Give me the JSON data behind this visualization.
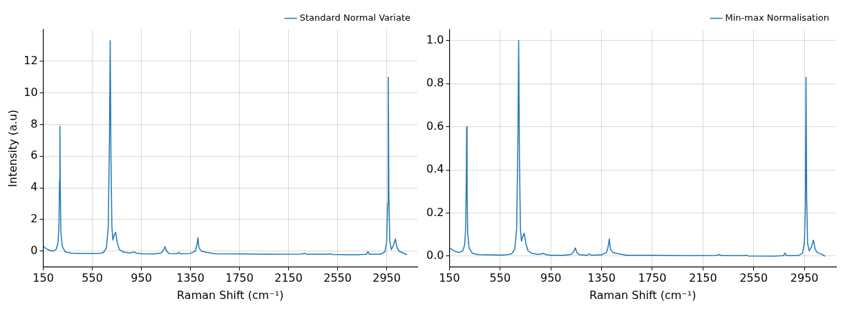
{
  "chart_data": [
    {
      "type": "line",
      "xlabel": "Raman Shift (cm⁻¹)",
      "ylabel": "Intensity (a.u)",
      "x": [
        150,
        170,
        200,
        230,
        255,
        270,
        278,
        283,
        286,
        289,
        294,
        305,
        330,
        380,
        450,
        550,
        600,
        640,
        665,
        680,
        690,
        696,
        702,
        710,
        718,
        728,
        740,
        752,
        770,
        800,
        850,
        880,
        892,
        905,
        950,
        1050,
        1110,
        1130,
        1143,
        1155,
        1175,
        1240,
        1253,
        1268,
        1350,
        1390,
        1403,
        1411,
        1420,
        1440,
        1480,
        1550,
        1750,
        2000,
        2250,
        2279,
        2300,
        2480,
        2492,
        2505,
        2700,
        2785,
        2797,
        2808,
        2900,
        2935,
        2950,
        2958,
        2963,
        2968,
        2975,
        2988,
        3005,
        3021,
        3035,
        3050,
        3080,
        3114
      ],
      "series": [
        {
          "name": "Standard Normal Variate",
          "color": "#1f77b4",
          "values": [
            0.3,
            0.18,
            0.05,
            0.0,
            0.1,
            0.5,
            1.5,
            4.5,
            7.9,
            4.0,
            1.2,
            0.3,
            -0.05,
            -0.13,
            -0.15,
            -0.16,
            -0.15,
            -0.1,
            0.2,
            1.5,
            7.0,
            13.3,
            6.0,
            1.5,
            0.7,
            1.0,
            1.2,
            0.6,
            0.1,
            -0.05,
            -0.12,
            -0.08,
            -0.05,
            -0.12,
            -0.17,
            -0.18,
            -0.12,
            0.05,
            0.28,
            0.0,
            -0.15,
            -0.17,
            -0.08,
            -0.17,
            -0.15,
            0.0,
            0.4,
            0.85,
            0.2,
            0.0,
            -0.08,
            -0.17,
            -0.18,
            -0.2,
            -0.19,
            -0.14,
            -0.2,
            -0.2,
            -0.16,
            -0.21,
            -0.23,
            -0.2,
            -0.03,
            -0.2,
            -0.2,
            -0.05,
            0.6,
            3.0,
            11.0,
            3.5,
            0.6,
            0.1,
            0.35,
            0.77,
            0.2,
            0.0,
            -0.1,
            -0.23
          ]
        }
      ],
      "xlim": [
        150,
        3200
      ],
      "ylim": [
        -1,
        14
      ],
      "xticks": [
        150,
        550,
        950,
        1350,
        1750,
        2150,
        2550,
        2950
      ],
      "yticks": [
        0,
        2,
        4,
        6,
        8,
        10,
        12
      ],
      "grid": true,
      "legend": "top right"
    },
    {
      "type": "line",
      "xlabel": "Raman Shift (cm⁻¹)",
      "x": [
        150,
        170,
        200,
        230,
        255,
        270,
        278,
        283,
        286,
        289,
        294,
        305,
        330,
        380,
        450,
        550,
        600,
        640,
        665,
        680,
        690,
        696,
        702,
        710,
        718,
        728,
        740,
        752,
        770,
        800,
        850,
        880,
        892,
        905,
        950,
        1050,
        1110,
        1130,
        1143,
        1155,
        1175,
        1240,
        1253,
        1268,
        1350,
        1390,
        1403,
        1411,
        1420,
        1440,
        1480,
        1550,
        1750,
        2000,
        2250,
        2279,
        2300,
        2480,
        2492,
        2505,
        2700,
        2785,
        2797,
        2808,
        2900,
        2935,
        2950,
        2958,
        2963,
        2968,
        2975,
        2988,
        3005,
        3021,
        3035,
        3050,
        3080,
        3114
      ],
      "series": [
        {
          "name": "Min-max Normalisation",
          "color": "#1f77b4",
          "values": [
            0.039,
            0.03,
            0.021,
            0.017,
            0.024,
            0.054,
            0.128,
            0.35,
            0.6,
            0.313,
            0.106,
            0.039,
            0.013,
            0.007,
            0.006,
            0.005,
            0.006,
            0.01,
            0.032,
            0.128,
            0.534,
            1.0,
            0.46,
            0.128,
            0.069,
            0.091,
            0.106,
            0.061,
            0.024,
            0.013,
            0.008,
            0.011,
            0.013,
            0.008,
            0.004,
            0.004,
            0.008,
            0.021,
            0.038,
            0.017,
            0.006,
            0.004,
            0.011,
            0.004,
            0.006,
            0.017,
            0.047,
            0.08,
            0.032,
            0.017,
            0.011,
            0.004,
            0.004,
            0.002,
            0.003,
            0.007,
            0.002,
            0.002,
            0.005,
            0.001,
            0.0,
            0.002,
            0.015,
            0.002,
            0.002,
            0.013,
            0.061,
            0.239,
            0.83,
            0.276,
            0.061,
            0.024,
            0.043,
            0.074,
            0.032,
            0.017,
            0.01,
            0.0
          ]
        }
      ],
      "xlim": [
        150,
        3200
      ],
      "ylim": [
        -0.05,
        1.05
      ],
      "xticks": [
        150,
        550,
        950,
        1350,
        1750,
        2150,
        2550,
        2950
      ],
      "yticks": [
        {
          "value": 0,
          "label": "0.0"
        },
        0.2,
        0.4,
        0.6,
        0.8,
        {
          "value": 1,
          "label": "1.0"
        }
      ],
      "grid": true,
      "legend": "top right"
    }
  ]
}
